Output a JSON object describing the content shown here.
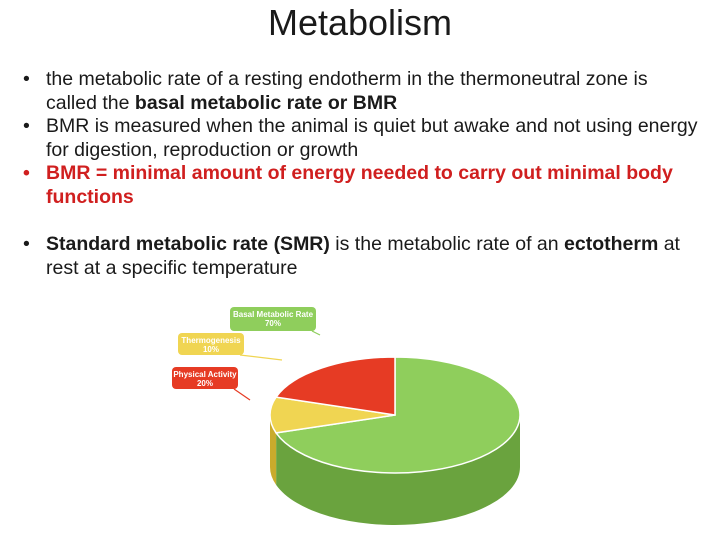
{
  "slide": {
    "title": "Metabolism",
    "bullets": [
      {
        "pre": "the metabolic rate of a resting endotherm in the thermoneutral zone is called the ",
        "bold": "basal metabolic rate or BMR"
      },
      {
        "text": "BMR is measured when the animal is quiet but awake and not using energy for digestion, reproduction or growth"
      },
      {
        "text": "BMR = minimal amount of energy needed to carry out minimal body functions"
      },
      {
        "bold": "Standard metabolic rate (SMR)",
        "mid": " is the metabolic rate of an ",
        "bold2": "ectotherm",
        "post": " at rest at a specific temperature"
      }
    ]
  },
  "chart_data": {
    "type": "pie",
    "slices": [
      {
        "label": "Basal Metabolic Rate",
        "value_label": "70%",
        "value": 70,
        "color": "#8fce5c",
        "side_color": "#6aa33e",
        "tag_color": "#8fce5c"
      },
      {
        "label": "Thermogenesis",
        "value_label": "10%",
        "value": 10,
        "color": "#f0d552",
        "side_color": "#c9ab2c",
        "tag_color": "#f0d552"
      },
      {
        "label": "Physical Activity",
        "value_label": "20%",
        "value": 20,
        "color": "#e63b24",
        "side_color": "#b52614",
        "tag_color": "#e63b24"
      }
    ],
    "three_d": true
  }
}
